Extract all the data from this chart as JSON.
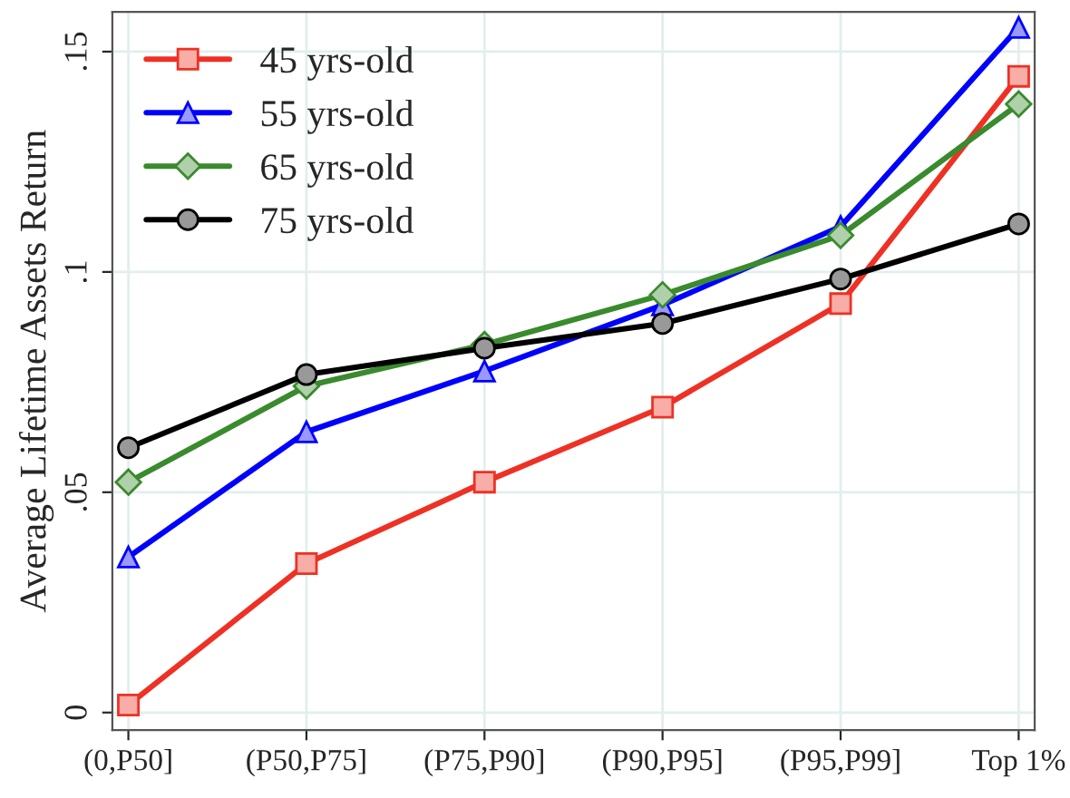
{
  "chart_data": {
    "type": "line",
    "ylabel": "Average Lifetime Assets Return",
    "categories": [
      "(0,P50]",
      "(P50,P75]",
      "(P75,P90]",
      "(P90,P95]",
      "(P95,P99]",
      "Top 1%"
    ],
    "series": [
      {
        "name": "45 yrs-old",
        "color": "#ee3124",
        "marker": "square",
        "values": [
          0.0017,
          0.0338,
          0.0523,
          0.0693,
          0.0928,
          0.1444
        ]
      },
      {
        "name": "55 yrs-old",
        "color": "#0000ff",
        "marker": "triangle",
        "values": [
          0.0353,
          0.0637,
          0.0775,
          0.0925,
          0.1103,
          0.1555
        ]
      },
      {
        "name": "65 yrs-old",
        "color": "#3a8a2e",
        "marker": "diamond",
        "values": [
          0.0523,
          0.0741,
          0.0835,
          0.0948,
          0.1083,
          0.1381
        ]
      },
      {
        "name": "75 yrs-old",
        "color": "#000000",
        "marker": "circle",
        "values": [
          0.0601,
          0.0767,
          0.0827,
          0.0883,
          0.0984,
          0.1109
        ]
      }
    ],
    "ylim": [
      -0.004,
      0.159
    ],
    "yticks": [
      0,
      {
        "value": 0.05,
        "label": ".05"
      },
      {
        "value": 0.1,
        "label": ".1"
      },
      {
        "value": 0.15,
        "label": ".15"
      }
    ],
    "grid": true,
    "legend": "top left",
    "line_style": "solid"
  }
}
